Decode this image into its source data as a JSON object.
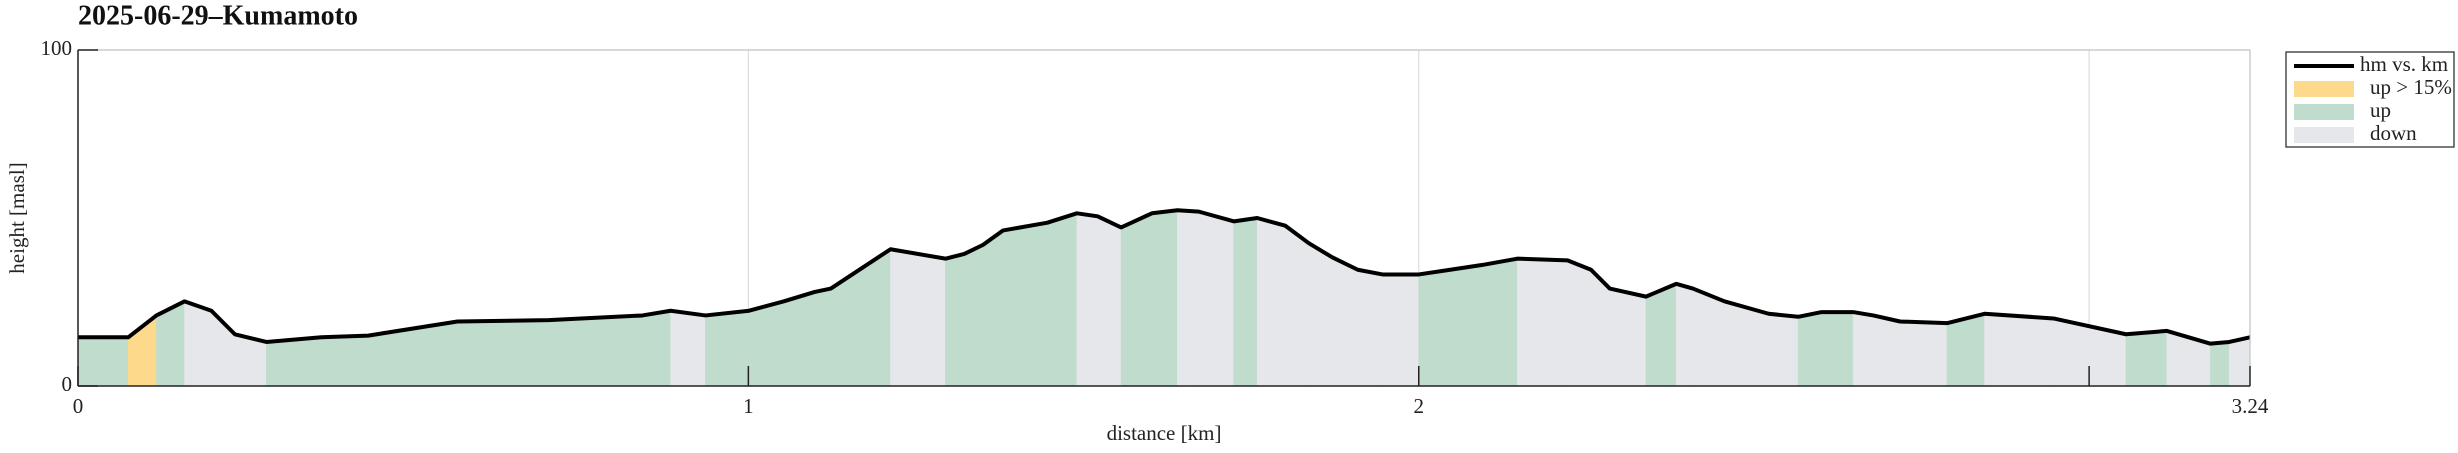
{
  "chart_data": {
    "type": "area-profile",
    "title": "2025-06-29–Kumamoto",
    "x_label": "distance [km]",
    "y_label": "height [masl]",
    "xlim": [
      0,
      3.24
    ],
    "xticks": [
      0,
      1,
      2,
      {
        "value": 3,
        "label": null
      },
      3.24
    ],
    "ylim": [
      0,
      100
    ],
    "yticks": [
      0,
      100
    ],
    "grid": true,
    "legend": "outside-right-top",
    "series": [
      {
        "name": "hm vs. km",
        "color": "#000000",
        "x": [
          0,
          0.075,
          0.117,
          0.159,
          0.199,
          0.234,
          0.281,
          0.363,
          0.433,
          0.566,
          0.702,
          0.842,
          0.884,
          0.936,
          1.001,
          1.053,
          1.099,
          1.123,
          1.212,
          1.294,
          1.322,
          1.35,
          1.38,
          1.446,
          1.49,
          1.521,
          1.556,
          1.602,
          1.64,
          1.672,
          1.724,
          1.759,
          1.801,
          1.836,
          1.871,
          1.909,
          1.946,
          2.0,
          2.047,
          2.094,
          2.147,
          2.222,
          2.257,
          2.285,
          2.339,
          2.384,
          2.409,
          2.456,
          2.522,
          2.566,
          2.601,
          2.648,
          2.678,
          2.718,
          2.788,
          2.844,
          2.947,
          3.055,
          3.116,
          3.181,
          3.209,
          3.24
        ],
        "values": [
          14.5,
          14.5,
          21,
          25.2,
          22.4,
          15.4,
          13.1,
          14.5,
          15,
          19.2,
          19.6,
          21,
          22.4,
          21,
          22.4,
          25.2,
          28,
          29,
          40.7,
          37.9,
          39.3,
          42,
          46.3,
          48.6,
          51.4,
          50.5,
          47.2,
          51.4,
          52.3,
          51.9,
          49,
          50,
          47.7,
          42.5,
          38.3,
          34.6,
          33.2,
          33.2,
          34.6,
          36,
          37.9,
          37.4,
          34.6,
          29,
          26.6,
          30.4,
          29,
          25.2,
          21.5,
          20.6,
          22,
          22,
          21,
          19.2,
          18.7,
          21.5,
          20.1,
          15.4,
          16.4,
          12.6,
          13.1,
          14.5
        ]
      }
    ],
    "fills": [
      {
        "name": "up > 15%",
        "color": "#fcd98b"
      },
      {
        "name": "up",
        "color": "#bfdccc"
      },
      {
        "name": "down",
        "color": "#e6e7ea"
      }
    ],
    "fill_class": [
      1,
      0,
      1,
      2,
      2,
      2,
      1,
      1,
      1,
      1,
      1,
      1,
      2,
      1,
      1,
      1,
      1,
      1,
      2,
      1,
      1,
      1,
      1,
      1,
      2,
      2,
      1,
      1,
      2,
      2,
      1,
      2,
      2,
      2,
      2,
      2,
      2,
      1,
      1,
      1,
      2,
      2,
      2,
      2,
      1,
      2,
      2,
      2,
      2,
      1,
      1,
      2,
      2,
      2,
      1,
      2,
      2,
      1,
      2,
      1,
      2
    ]
  }
}
